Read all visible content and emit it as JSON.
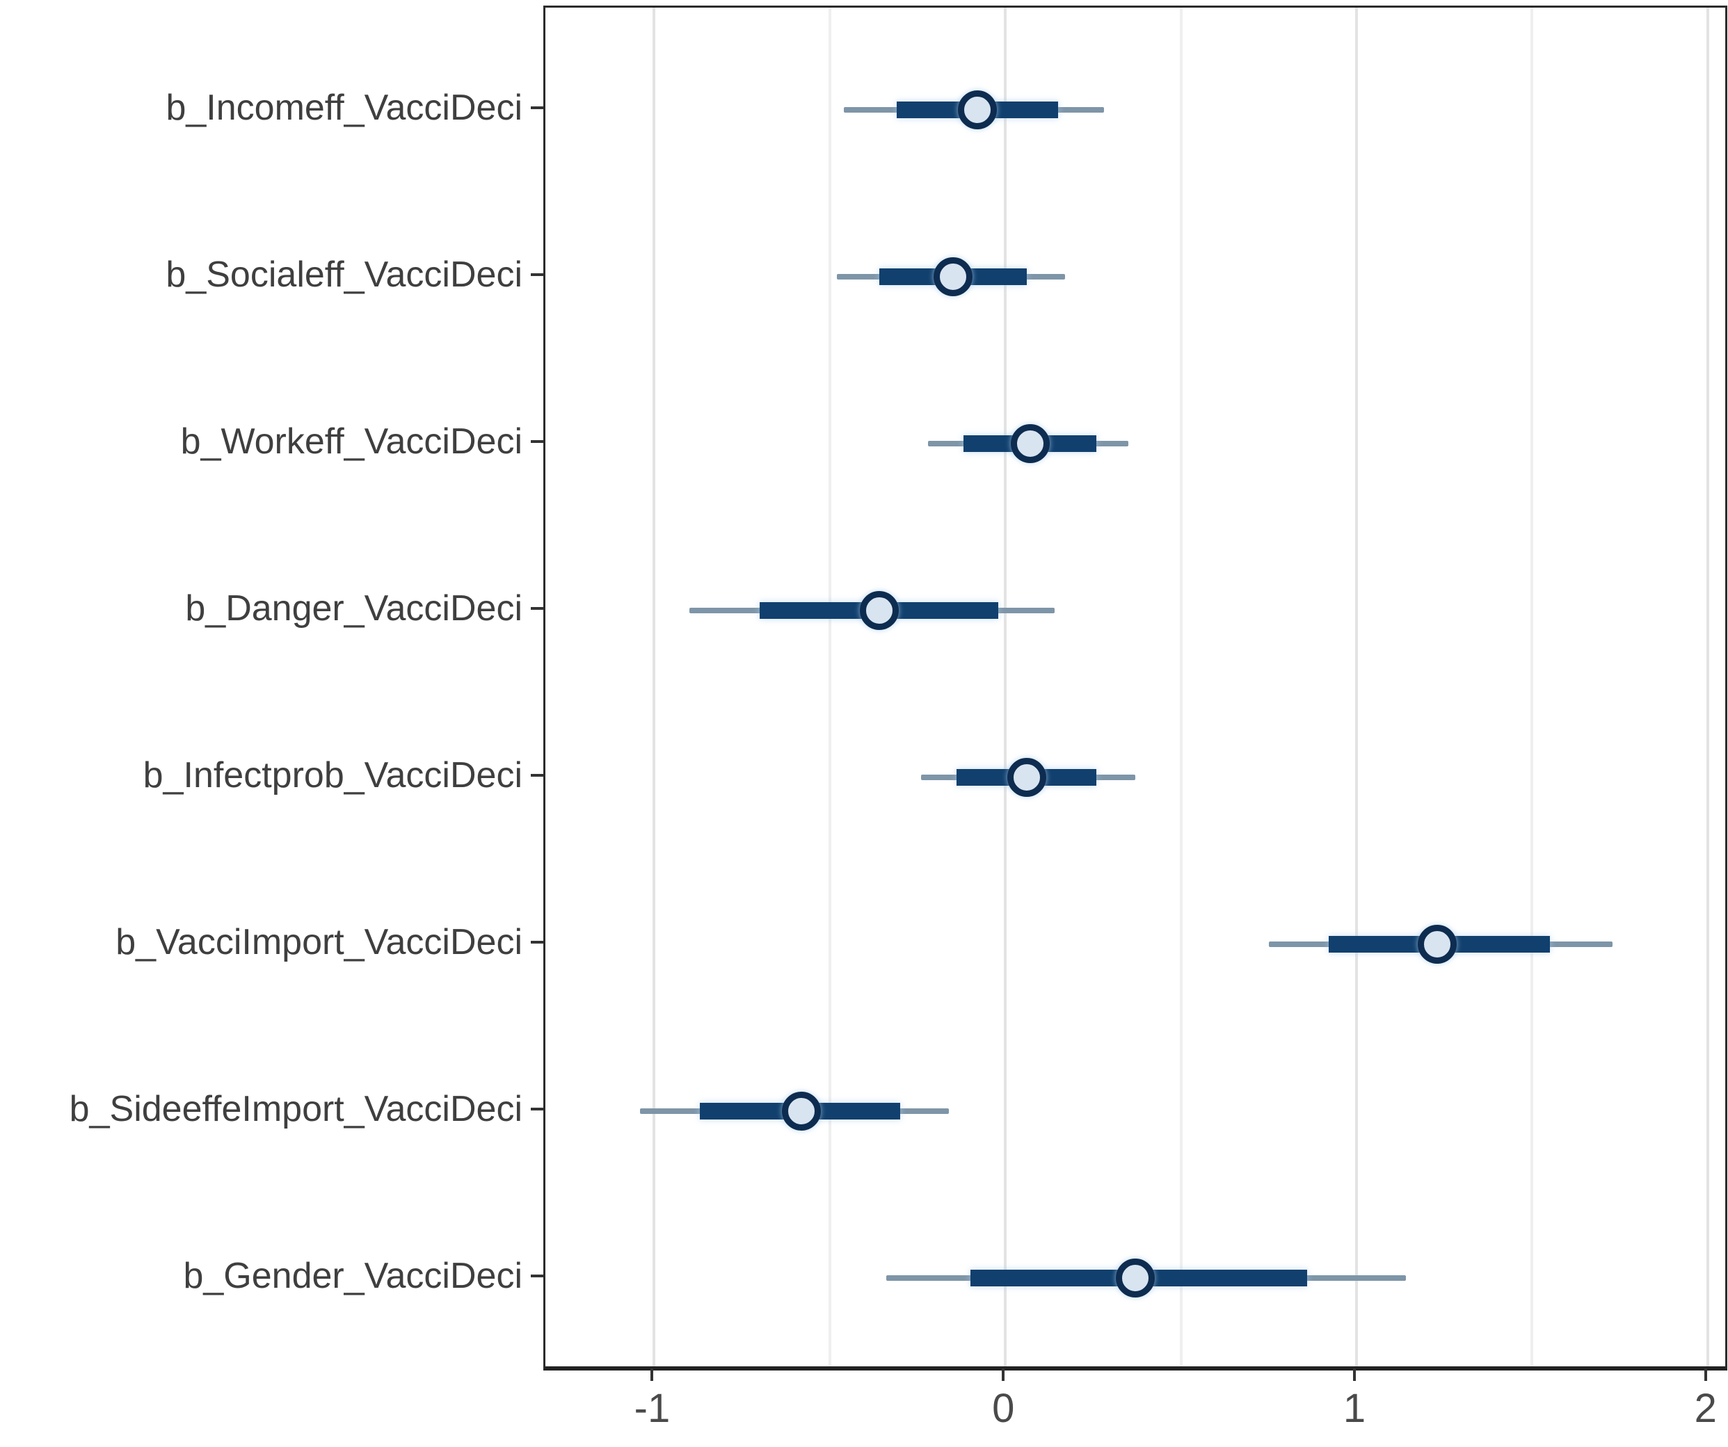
{
  "chart_data": {
    "type": "scatter",
    "subtype": "forest-interval-plot",
    "title": "",
    "xlabel": "",
    "ylabel": "",
    "grid": true,
    "legend": "none",
    "xlim": [
      -1.31,
      2.05
    ],
    "x_major_ticks": [
      -1,
      0,
      1,
      2
    ],
    "x_tick_labels": [
      "-1",
      "0",
      "1",
      "2"
    ],
    "x_minor_gridlines": [
      -0.5,
      0.5,
      1.5
    ],
    "categories": [
      "b_Incomeff_VacciDeci",
      "b_Socialeff_VacciDeci",
      "b_Workeff_VacciDeci",
      "b_Danger_VacciDeci",
      "b_Infectprob_VacciDeci",
      "b_VacciImport_VacciDeci",
      "b_SideeffeImport_VacciDeci",
      "b_Gender_VacciDeci"
    ],
    "rows": [
      {
        "label": "b_Incomeff_VacciDeci",
        "estimate": -0.08,
        "inner_interval": [
          -0.31,
          0.15
        ],
        "outer_interval": [
          -0.46,
          0.28
        ]
      },
      {
        "label": "b_Socialeff_VacciDeci",
        "estimate": -0.15,
        "inner_interval": [
          -0.36,
          0.06
        ],
        "outer_interval": [
          -0.48,
          0.17
        ]
      },
      {
        "label": "b_Workeff_VacciDeci",
        "estimate": 0.07,
        "inner_interval": [
          -0.12,
          0.26
        ],
        "outer_interval": [
          -0.22,
          0.35
        ]
      },
      {
        "label": "b_Danger_VacciDeci",
        "estimate": -0.36,
        "inner_interval": [
          -0.7,
          -0.02
        ],
        "outer_interval": [
          -0.9,
          0.14
        ]
      },
      {
        "label": "b_Infectprob_VacciDeci",
        "estimate": 0.06,
        "inner_interval": [
          -0.14,
          0.26
        ],
        "outer_interval": [
          -0.24,
          0.37
        ]
      },
      {
        "label": "b_VacciImport_VacciDeci",
        "estimate": 1.23,
        "inner_interval": [
          0.92,
          1.55
        ],
        "outer_interval": [
          0.75,
          1.73
        ]
      },
      {
        "label": "b_SideeffeImport_VacciDeci",
        "estimate": -0.58,
        "inner_interval": [
          -0.87,
          -0.3
        ],
        "outer_interval": [
          -1.04,
          -0.16
        ]
      },
      {
        "label": "b_Gender_VacciDeci",
        "estimate": 0.37,
        "inner_interval": [
          -0.1,
          0.86
        ],
        "outer_interval": [
          -0.34,
          1.14
        ]
      }
    ],
    "colors": {
      "point_fill": "#d9e4f1",
      "point_stroke": "#0d2c50",
      "inner_interval": "#11406e",
      "outer_interval": "#7e95a8",
      "grid_major": "#e3e3e3",
      "grid_minor": "#efefef",
      "panel_border": "#2b2b2b",
      "axis_text": "#3f3f3f"
    }
  }
}
